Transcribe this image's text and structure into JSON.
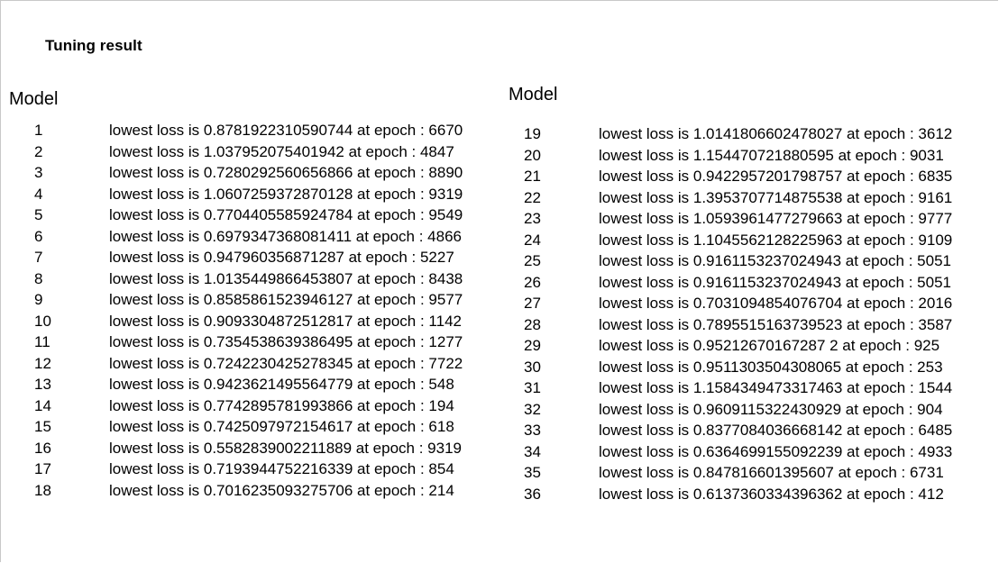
{
  "title": "Tuning result",
  "left_column": {
    "header": "Model",
    "rows": [
      {
        "model": "1",
        "result": "lowest loss is 0.8781922310590744 at epoch : 6670"
      },
      {
        "model": "2",
        "result": "lowest loss is 1.037952075401942 at epoch : 4847"
      },
      {
        "model": "3",
        "result": "lowest loss is 0.7280292560656866 at epoch : 8890"
      },
      {
        "model": "4",
        "result": "lowest loss is 1.0607259372870128 at epoch : 9319"
      },
      {
        "model": "5",
        "result": "lowest loss is 0.7704405585924784 at epoch : 9549"
      },
      {
        "model": "6",
        "result": "lowest loss is 0.6979347368081411 at epoch : 4866"
      },
      {
        "model": "7",
        "result": "lowest loss is 0.947960356871287 at epoch : 5227"
      },
      {
        "model": "8",
        "result": "lowest loss is 1.0135449866453807 at epoch : 8438"
      },
      {
        "model": "9",
        "result": "lowest loss is 0.8585861523946127 at epoch : 9577"
      },
      {
        "model": "10",
        "result": "lowest loss is 0.9093304872512817 at epoch : 1142"
      },
      {
        "model": "11",
        "result": "lowest loss is 0.7354538639386495 at epoch : 1277"
      },
      {
        "model": "12",
        "result": "lowest loss is 0.7242230425278345 at epoch : 7722"
      },
      {
        "model": "13",
        "result": "lowest loss is 0.9423621495564779 at epoch : 548"
      },
      {
        "model": "14",
        "result": "lowest loss is 0.7742895781993866 at epoch : 194"
      },
      {
        "model": "15",
        "result": "lowest loss is 0.7425097972154617 at epoch : 618"
      },
      {
        "model": "16",
        "result": "lowest loss is 0.5582839002211889 at epoch : 9319"
      },
      {
        "model": "17",
        "result": "lowest loss is 0.7193944752216339 at epoch : 854"
      },
      {
        "model": "18",
        "result": "lowest loss is 0.7016235093275706 at epoch : 214"
      }
    ]
  },
  "right_column": {
    "header": "Model",
    "rows": [
      {
        "model": "19",
        "result": "lowest loss is 1.0141806602478027 at epoch : 3612"
      },
      {
        "model": "20",
        "result": "lowest loss is 1.154470721880595 at epoch : 9031"
      },
      {
        "model": "21",
        "result": "lowest loss is 0.9422957201798757 at epoch : 6835"
      },
      {
        "model": "22",
        "result": "lowest loss is 1.3953707714875538 at epoch : 9161"
      },
      {
        "model": "23",
        "result": "lowest loss is 1.0593961477279663 at epoch : 9777"
      },
      {
        "model": "24",
        "result": "lowest loss is 1.1045562128225963 at epoch : 9109"
      },
      {
        "model": "25",
        "result": "lowest loss is 0.9161153237024943 at epoch : 5051"
      },
      {
        "model": "26",
        "result": "lowest loss is 0.9161153237024943 at epoch : 5051"
      },
      {
        "model": "27",
        "result": "lowest loss is 0.7031094854076704 at epoch : 2016"
      },
      {
        "model": "28",
        "result": "lowest loss is 0.7895515163739523 at epoch : 3587"
      },
      {
        "model": "29",
        "result": "lowest loss is 0.95212670167287 2 at epoch : 925"
      },
      {
        "model": "30",
        "result": "lowest loss is 0.9511303504308065 at epoch : 253"
      },
      {
        "model": "31",
        "result": "lowest loss is 1.1584349473317463 at epoch : 1544"
      },
      {
        "model": "32",
        "result": "lowest loss is 0.9609115322430929 at epoch : 904"
      },
      {
        "model": "33",
        "result": "lowest loss is 0.8377084036668142 at epoch : 6485"
      },
      {
        "model": "34",
        "result": "lowest loss is 0.6364699155092239 at epoch : 4933"
      },
      {
        "model": "35",
        "result": "lowest loss is 0.847816601395607 at epoch : 6731"
      },
      {
        "model": "36",
        "result": "lowest loss is 0.6137360334396362 at epoch : 412"
      }
    ]
  }
}
